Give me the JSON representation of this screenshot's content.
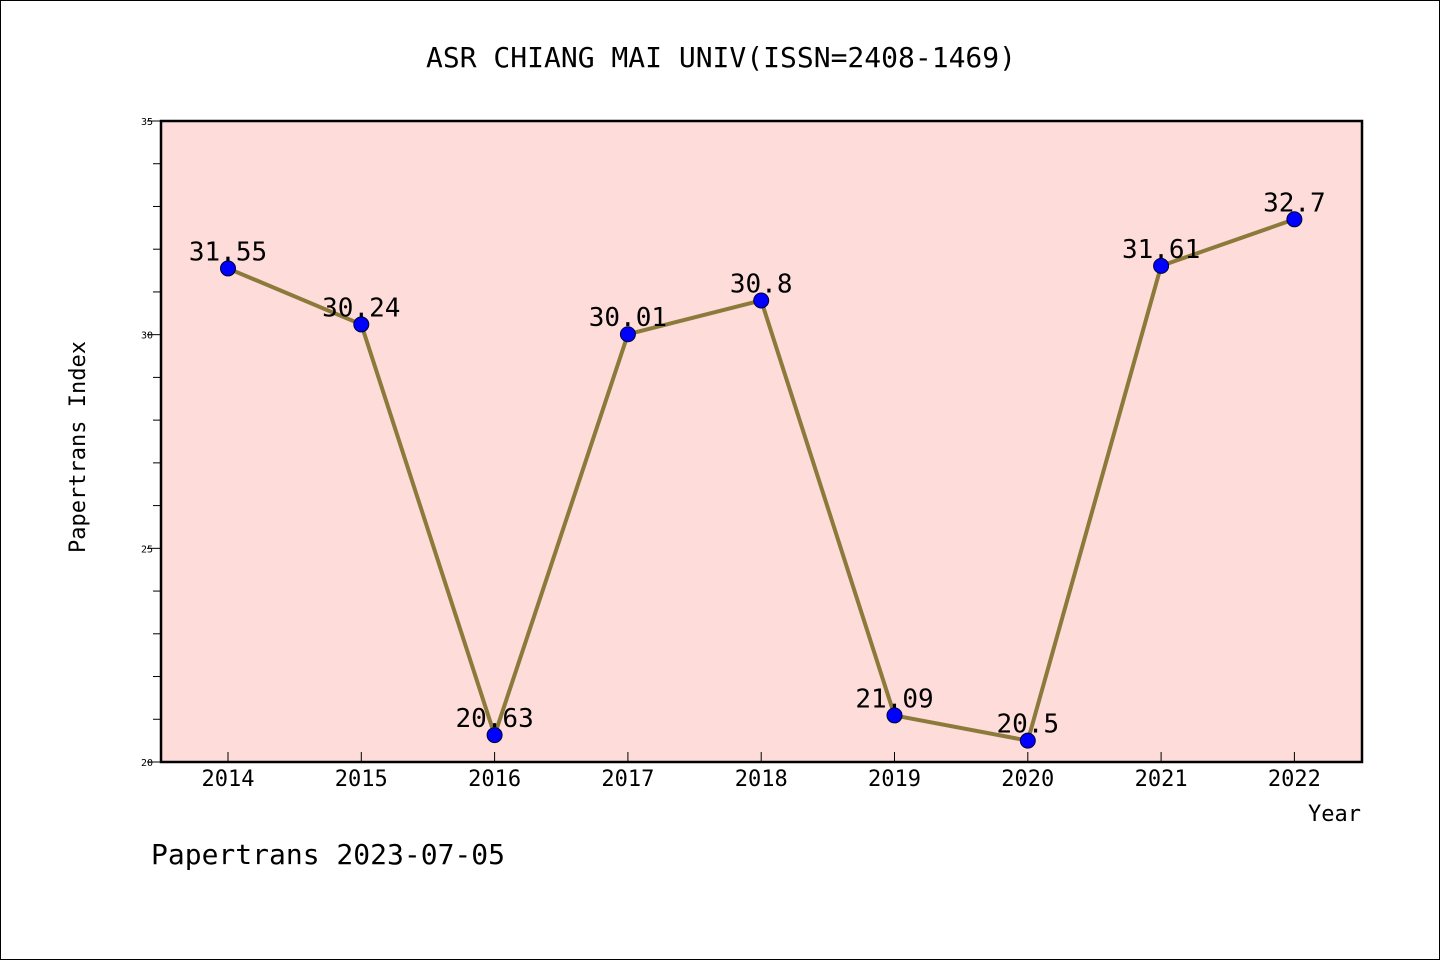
{
  "chart_data": {
    "type": "line",
    "title": "ASR CHIANG MAI UNIV(ISSN=2408-1469)",
    "xlabel": "Year",
    "ylabel": "Papertrans Index",
    "x": [
      "2014",
      "2015",
      "2016",
      "2017",
      "2018",
      "2019",
      "2020",
      "2021",
      "2022"
    ],
    "values": [
      31.55,
      30.24,
      20.63,
      30.01,
      30.8,
      21.09,
      20.5,
      31.61,
      32.7
    ],
    "value_labels": [
      "31.55",
      "30.24",
      "20.63",
      "30.01",
      "30.8",
      "21.09",
      "20.5",
      "31.61",
      "32.7"
    ],
    "ylim": [
      20,
      35
    ],
    "yticks": [
      "20",
      "25",
      "30",
      "35"
    ],
    "grid": false,
    "colors": {
      "plot_background": "#fddcda",
      "line": "#8c7a3a",
      "marker": "#0000ff"
    }
  },
  "footer": "Papertrans 2023-07-05"
}
